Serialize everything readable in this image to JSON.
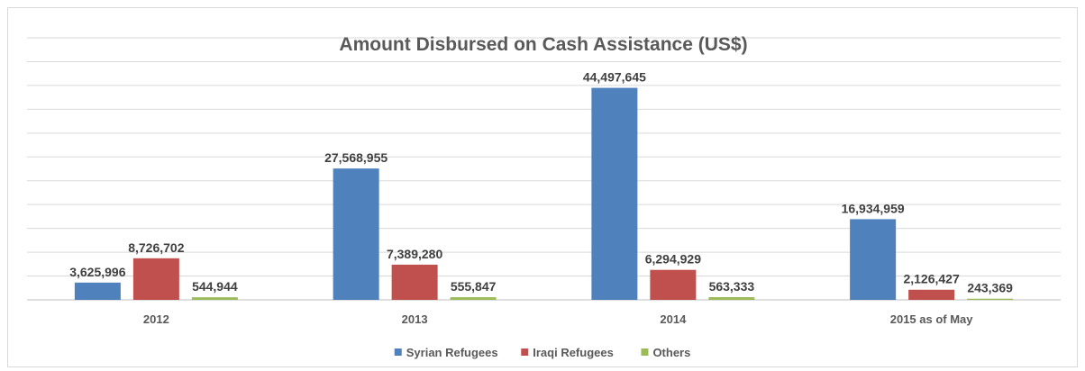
{
  "chart_data": {
    "type": "bar",
    "title": "Amount Disbursed on Cash Assistance (US$)",
    "xlabel": "",
    "ylabel": "",
    "categories": [
      "2012",
      "2013",
      "2014",
      "2015 as of May"
    ],
    "series": [
      {
        "name": "Syrian Refugees",
        "color": "#4f81bd",
        "values": [
          3625996,
          27568955,
          44497645,
          16934959
        ]
      },
      {
        "name": "Iraqi Refugees",
        "color": "#c0504d",
        "values": [
          8726702,
          7389280,
          6294929,
          2126427
        ]
      },
      {
        "name": "Others",
        "color": "#9bbb59",
        "values": [
          544944,
          555847,
          563333,
          243369
        ]
      }
    ],
    "data_labels": [
      [
        "3,625,996",
        "27,568,955",
        "44,497,645",
        "16,934,959"
      ],
      [
        "8,726,702",
        "7,389,280",
        "6,294,929",
        "2,126,427"
      ],
      [
        "544,944",
        "555,847",
        "563,333",
        "243,369"
      ]
    ],
    "ylim": [
      0,
      55000000
    ],
    "grid": true,
    "legend_position": "bottom"
  }
}
